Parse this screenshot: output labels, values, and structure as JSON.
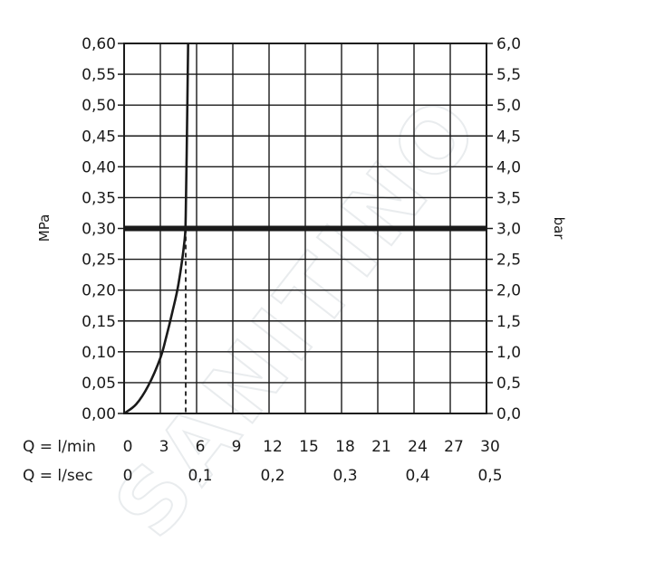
{
  "watermark": {
    "text": "SANITINO"
  },
  "chart_data": {
    "type": "line",
    "title": "",
    "ylabel_left": "MPa",
    "ylabel_right": "bar",
    "ylim": [
      0,
      0.6
    ],
    "y_ticks_left": [
      "0,00",
      "0,05",
      "0,10",
      "0,15",
      "0,20",
      "0,25",
      "0,30",
      "0,35",
      "0,40",
      "0,45",
      "0,50",
      "0,55",
      "0,60"
    ],
    "y_ticks_right": [
      "0,0",
      "0,5",
      "1,0",
      "1,5",
      "2,0",
      "2,5",
      "3,0",
      "3,5",
      "4,0",
      "4,5",
      "5,0",
      "5,5",
      "6,0"
    ],
    "xlim": [
      0,
      30
    ],
    "x_row1": {
      "label": "Q = l/min",
      "ticks": [
        "0",
        "3",
        "6",
        "9",
        "12",
        "15",
        "18",
        "21",
        "24",
        "27",
        "30"
      ]
    },
    "x_row2": {
      "label": "Q = l/sec",
      "ticks": [
        "0",
        "0,1",
        "0,2",
        "0,3",
        "0,4",
        "0,5"
      ]
    },
    "grid": true,
    "series": [
      {
        "x": [
          0,
          1,
          2,
          3,
          3.5,
          4,
          4.5,
          5,
          5.1,
          5.2,
          5.3
        ],
        "y": [
          0,
          0.015,
          0.045,
          0.09,
          0.125,
          0.165,
          0.21,
          0.28,
          0.32,
          0.45,
          0.6
        ]
      }
    ],
    "reference_line": {
      "y": 0.3
    },
    "operating_point": {
      "x": 5.1,
      "y": 0.3
    }
  }
}
